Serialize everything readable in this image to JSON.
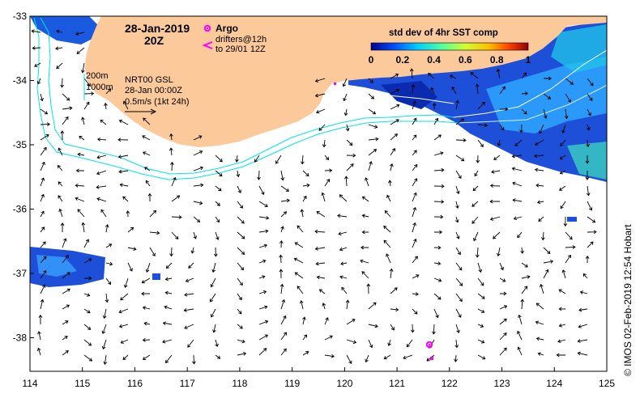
{
  "map": {
    "date_title": "28-Jan-2019",
    "time_title": "20Z",
    "legend": {
      "argo_label": "Argo",
      "drifters_line1": "drifters@12h",
      "drifters_line2": "to 29/01 12Z",
      "argo_color": "#ff00ff",
      "drifter_color": "#ff00ff"
    },
    "depth_contours": [
      "200m",
      "1000m"
    ],
    "product_info": {
      "line1": "NRT00 GSL",
      "line2": "28-Jan 00:00Z",
      "line3": "0.5m/s (1kt 24h)"
    },
    "colorbar": {
      "title": "std dev of 4hr SST comp",
      "ticks": [
        "0",
        "0.2",
        "0.4",
        "0.6",
        "0.8",
        "1"
      ],
      "colors": [
        "#00008f",
        "#0050ff",
        "#00cfff",
        "#4fff9f",
        "#cfff2f",
        "#ffbf00",
        "#ff4000",
        "#8f0000"
      ]
    },
    "x_axis_ticks": [
      "114",
      "115",
      "116",
      "117",
      "118",
      "119",
      "120",
      "121",
      "122",
      "123",
      "124",
      "125"
    ],
    "y_axis_ticks": [
      "-33",
      "-34",
      "-35",
      "-36",
      "-37",
      "-38"
    ],
    "credit": "© IMOS 02-Feb-2019 12:54 Hobart",
    "colors": {
      "land": "#fcc99a",
      "contour": "#00e5e5",
      "ocean": "#ffffff"
    }
  }
}
